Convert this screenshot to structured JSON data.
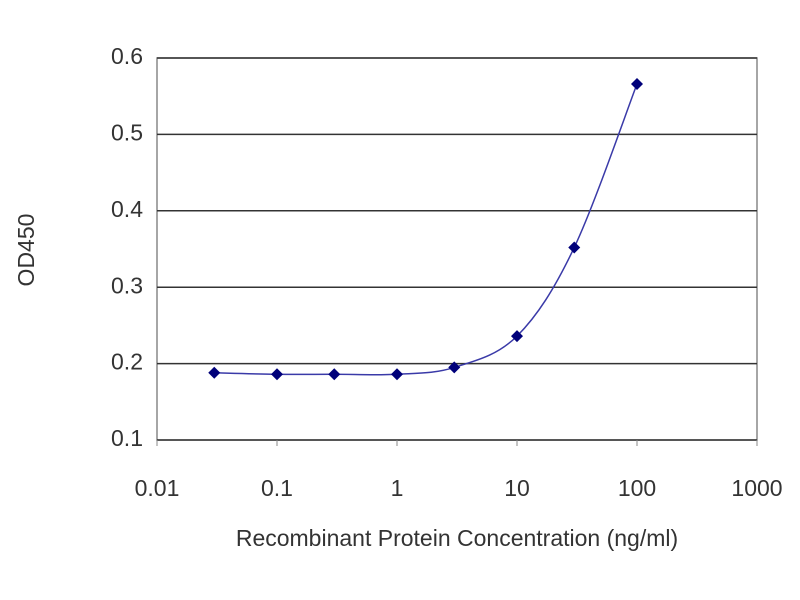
{
  "chart_data": {
    "type": "line",
    "x_label": "Recombinant Protein Concentration (ng/ml)",
    "y_label": "OD450",
    "x": [
      0.03,
      0.1,
      0.3,
      1,
      3,
      10,
      30,
      100
    ],
    "values": [
      0.188,
      0.186,
      0.186,
      0.186,
      0.195,
      0.236,
      0.352,
      0.566
    ],
    "color": "#00007a",
    "line_color": "#3a3aa8",
    "x_log": true,
    "xlim": [
      0.01,
      1000
    ],
    "xticks": [
      0.01,
      0.1,
      1,
      10,
      100,
      1000
    ],
    "ylim": [
      0.1,
      0.6
    ],
    "yticks": [
      0.1,
      0.2,
      0.3,
      0.4,
      0.5,
      0.6
    ],
    "grid": true
  }
}
